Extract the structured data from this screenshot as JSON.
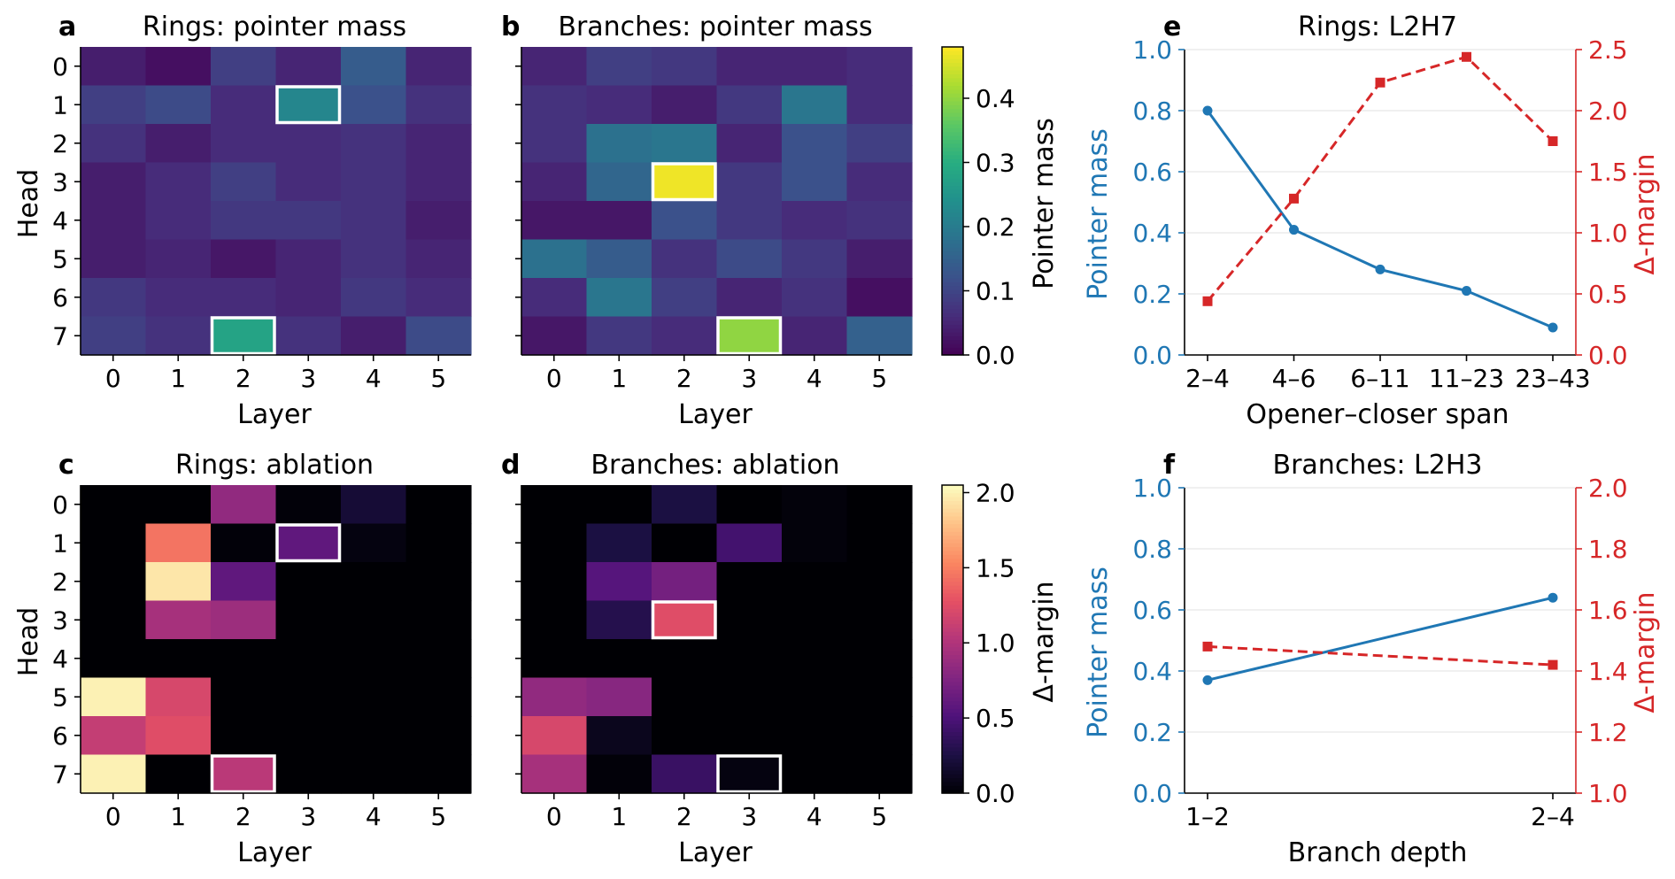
{
  "colors": {
    "blue": "#1f77b4",
    "red": "#d62728",
    "highlight": "#ffffff",
    "axis": "#000000",
    "grid": "#e6e6e6"
  },
  "chart_data": [
    {
      "id": "a",
      "panel_label": "a",
      "type": "heatmap",
      "title": "Rings: pointer mass",
      "xlabel": "Layer",
      "ylabel": "Head",
      "x_ticks": [
        "0",
        "1",
        "2",
        "3",
        "4",
        "5"
      ],
      "y_ticks": [
        "0",
        "1",
        "2",
        "3",
        "4",
        "5",
        "6",
        "7"
      ],
      "colormap": "viridis",
      "vmin": 0.0,
      "vmax": 0.48,
      "values": [
        [
          0.04,
          0.02,
          0.09,
          0.05,
          0.14,
          0.05
        ],
        [
          0.09,
          0.11,
          0.06,
          0.22,
          0.12,
          0.07
        ],
        [
          0.07,
          0.04,
          0.06,
          0.06,
          0.07,
          0.05
        ],
        [
          0.04,
          0.06,
          0.09,
          0.06,
          0.07,
          0.05
        ],
        [
          0.04,
          0.06,
          0.08,
          0.08,
          0.07,
          0.04
        ],
        [
          0.04,
          0.05,
          0.03,
          0.05,
          0.07,
          0.05
        ],
        [
          0.08,
          0.06,
          0.06,
          0.05,
          0.08,
          0.06
        ],
        [
          0.09,
          0.07,
          0.28,
          0.07,
          0.04,
          0.11
        ]
      ],
      "highlight": [
        [
          1,
          3
        ],
        [
          7,
          2
        ]
      ]
    },
    {
      "id": "b",
      "panel_label": "b",
      "type": "heatmap",
      "title": "Branches: pointer mass",
      "xlabel": "Layer",
      "ylabel": "",
      "x_ticks": [
        "0",
        "1",
        "2",
        "3",
        "4",
        "5"
      ],
      "y_ticks": [
        "0",
        "1",
        "2",
        "3",
        "4",
        "5",
        "6",
        "7"
      ],
      "colormap": "viridis",
      "vmin": 0.0,
      "vmax": 0.48,
      "values": [
        [
          0.05,
          0.09,
          0.08,
          0.05,
          0.05,
          0.06
        ],
        [
          0.07,
          0.06,
          0.04,
          0.08,
          0.19,
          0.06
        ],
        [
          0.07,
          0.18,
          0.19,
          0.05,
          0.12,
          0.09
        ],
        [
          0.05,
          0.16,
          0.47,
          0.08,
          0.12,
          0.06
        ],
        [
          0.03,
          0.03,
          0.12,
          0.08,
          0.06,
          0.07
        ],
        [
          0.18,
          0.14,
          0.07,
          0.11,
          0.08,
          0.04
        ],
        [
          0.06,
          0.19,
          0.09,
          0.05,
          0.07,
          0.02
        ],
        [
          0.03,
          0.08,
          0.06,
          0.4,
          0.05,
          0.15
        ]
      ],
      "highlight": [
        [
          3,
          2
        ],
        [
          7,
          3
        ]
      ],
      "colorbar": {
        "label": "Pointer mass",
        "ticks": [
          "0.0",
          "0.1",
          "0.2",
          "0.3",
          "0.4"
        ],
        "tick_values": [
          0.0,
          0.1,
          0.2,
          0.3,
          0.4
        ]
      }
    },
    {
      "id": "c",
      "panel_label": "c",
      "type": "heatmap",
      "title": "Rings: ablation",
      "xlabel": "Layer",
      "ylabel": "Head",
      "x_ticks": [
        "0",
        "1",
        "2",
        "3",
        "4",
        "5"
      ],
      "y_ticks": [
        "0",
        "1",
        "2",
        "3",
        "4",
        "5",
        "6",
        "7"
      ],
      "colormap": "magma",
      "vmin": 0.0,
      "vmax": 2.05,
      "values": [
        [
          0.0,
          0.0,
          0.85,
          0.02,
          0.2,
          0.0
        ],
        [
          0.0,
          1.45,
          0.02,
          0.6,
          0.05,
          0.0
        ],
        [
          0.0,
          1.95,
          0.6,
          0.0,
          0.0,
          0.0
        ],
        [
          0.0,
          0.95,
          0.9,
          0.0,
          0.0,
          0.0
        ],
        [
          0.0,
          0.0,
          0.0,
          0.0,
          0.0,
          0.0
        ],
        [
          2.0,
          1.2,
          0.0,
          0.0,
          0.0,
          0.0
        ],
        [
          1.1,
          1.25,
          0.0,
          0.0,
          0.0,
          0.0
        ],
        [
          2.0,
          0.0,
          1.05,
          0.0,
          0.0,
          0.0
        ]
      ],
      "highlight": [
        [
          1,
          3
        ],
        [
          7,
          2
        ]
      ]
    },
    {
      "id": "d",
      "panel_label": "d",
      "type": "heatmap",
      "title": "Branches: ablation",
      "xlabel": "Layer",
      "ylabel": "",
      "x_ticks": [
        "0",
        "1",
        "2",
        "3",
        "4",
        "5"
      ],
      "y_ticks": [
        "0",
        "1",
        "2",
        "3",
        "4",
        "5",
        "6",
        "7"
      ],
      "colormap": "magma",
      "vmin": 0.0,
      "vmax": 2.05,
      "values": [
        [
          0.0,
          0.0,
          0.25,
          0.0,
          0.03,
          0.0
        ],
        [
          0.0,
          0.25,
          0.0,
          0.45,
          0.03,
          0.0
        ],
        [
          0.0,
          0.55,
          0.7,
          0.0,
          0.0,
          0.0
        ],
        [
          0.0,
          0.3,
          1.25,
          0.0,
          0.0,
          0.0
        ],
        [
          0.0,
          0.0,
          0.0,
          0.0,
          0.0,
          0.0
        ],
        [
          0.85,
          0.8,
          0.0,
          0.0,
          0.0,
          0.0
        ],
        [
          1.2,
          0.1,
          0.0,
          0.0,
          0.0,
          0.0
        ],
        [
          0.95,
          0.02,
          0.4,
          0.05,
          0.0,
          0.0
        ]
      ],
      "highlight": [
        [
          3,
          2
        ],
        [
          7,
          3
        ]
      ],
      "colorbar": {
        "label": "Δ-margin",
        "ticks": [
          "0.0",
          "0.5",
          "1.0",
          "1.5",
          "2.0"
        ],
        "tick_values": [
          0.0,
          0.5,
          1.0,
          1.5,
          2.0
        ]
      }
    },
    {
      "id": "e",
      "panel_label": "e",
      "type": "line",
      "title": "Rings: L2H7",
      "xlabel": "Opener–closer span",
      "categories": [
        "2–4",
        "4–6",
        "6–11",
        "11–23",
        "23–43"
      ],
      "ylabel_left": "Pointer mass",
      "ylabel_right": "Δ-margin",
      "ylim_left": [
        0.0,
        1.0
      ],
      "ylim_right": [
        0.0,
        2.5
      ],
      "yticks_left": [
        "0.0",
        "0.2",
        "0.4",
        "0.6",
        "0.8",
        "1.0"
      ],
      "yticks_right": [
        "0.0",
        "0.5",
        "1.0",
        "1.5",
        "2.0",
        "2.5"
      ],
      "grid": true,
      "series": [
        {
          "name": "Pointer mass",
          "axis": "left",
          "style": "solid",
          "marker": "circle",
          "values": [
            0.8,
            0.41,
            0.28,
            0.21,
            0.09
          ]
        },
        {
          "name": "Δ-margin",
          "axis": "right",
          "style": "dashed",
          "marker": "square",
          "values": [
            0.44,
            1.28,
            2.23,
            2.44,
            1.75
          ]
        }
      ]
    },
    {
      "id": "f",
      "panel_label": "f",
      "type": "line",
      "title": "Branches: L2H3",
      "xlabel": "Branch depth",
      "categories": [
        "1–2",
        "2–4"
      ],
      "ylabel_left": "Pointer mass",
      "ylabel_right": "Δ-margin",
      "ylim_left": [
        0.0,
        1.0
      ],
      "ylim_right": [
        1.0,
        2.0
      ],
      "yticks_left": [
        "0.0",
        "0.2",
        "0.4",
        "0.6",
        "0.8",
        "1.0"
      ],
      "yticks_right": [
        "1.0",
        "1.2",
        "1.4",
        "1.6",
        "1.8",
        "2.0"
      ],
      "grid": true,
      "series": [
        {
          "name": "Pointer mass",
          "axis": "left",
          "style": "solid",
          "marker": "circle",
          "values": [
            0.37,
            0.64
          ]
        },
        {
          "name": "Δ-margin",
          "axis": "right",
          "style": "dashed",
          "marker": "square",
          "values": [
            1.48,
            1.42
          ]
        }
      ]
    }
  ]
}
